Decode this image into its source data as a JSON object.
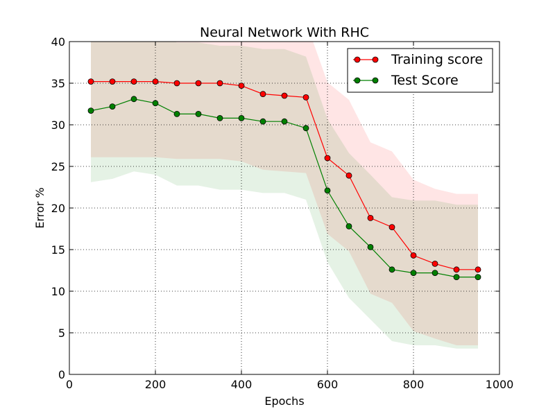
{
  "chart_data": {
    "type": "line",
    "title": "Neural Network With RHC",
    "xlabel": "Epochs",
    "ylabel": "Error %",
    "xlim": [
      0,
      1000
    ],
    "ylim": [
      0,
      40
    ],
    "xticks": [
      0,
      200,
      400,
      600,
      800,
      1000
    ],
    "yticks": [
      0,
      5,
      10,
      15,
      20,
      25,
      30,
      35,
      40
    ],
    "grid": true,
    "legend_position": "top-right",
    "x": [
      50,
      100,
      150,
      200,
      250,
      300,
      350,
      400,
      450,
      500,
      550,
      600,
      650,
      700,
      750,
      800,
      850,
      900,
      950
    ],
    "series": [
      {
        "name": "Training score",
        "color": "#ff0000",
        "marker_fill": "#ff0000",
        "band_color": "#ff0000",
        "values": [
          35.2,
          35.2,
          35.2,
          35.2,
          35.0,
          35.0,
          35.0,
          34.7,
          33.7,
          33.5,
          33.3,
          26.0,
          23.9,
          18.8,
          17.7,
          14.3,
          13.3,
          12.6,
          12.6
        ],
        "upper": [
          44.3,
          44.3,
          44.3,
          44.3,
          44.1,
          44.1,
          44.1,
          43.8,
          42.7,
          42.6,
          42.4,
          35.1,
          33.0,
          27.9,
          26.8,
          23.4,
          22.3,
          21.7,
          21.7
        ],
        "lower": [
          26.1,
          26.1,
          26.1,
          26.1,
          25.9,
          25.9,
          25.9,
          25.6,
          24.6,
          24.4,
          24.2,
          16.9,
          14.8,
          9.7,
          8.6,
          5.2,
          4.3,
          3.5,
          3.5
        ]
      },
      {
        "name": "Test Score",
        "color": "#008000",
        "marker_fill": "#008000",
        "band_color": "#008000",
        "values": [
          31.7,
          32.2,
          33.1,
          32.6,
          31.3,
          31.3,
          30.8,
          30.8,
          30.4,
          30.4,
          29.6,
          22.1,
          17.8,
          15.3,
          12.6,
          12.2,
          12.2,
          11.7,
          11.7
        ],
        "upper": [
          40.3,
          40.9,
          41.8,
          41.2,
          39.9,
          39.9,
          39.5,
          39.5,
          39.1,
          39.1,
          38.2,
          30.7,
          26.6,
          24.0,
          21.3,
          20.9,
          20.9,
          20.4,
          20.4
        ],
        "lower": [
          23.1,
          23.5,
          24.4,
          24.0,
          22.7,
          22.7,
          22.2,
          22.2,
          21.8,
          21.8,
          21.0,
          13.5,
          9.2,
          6.6,
          4.0,
          3.5,
          3.5,
          3.1,
          3.1
        ]
      }
    ]
  }
}
